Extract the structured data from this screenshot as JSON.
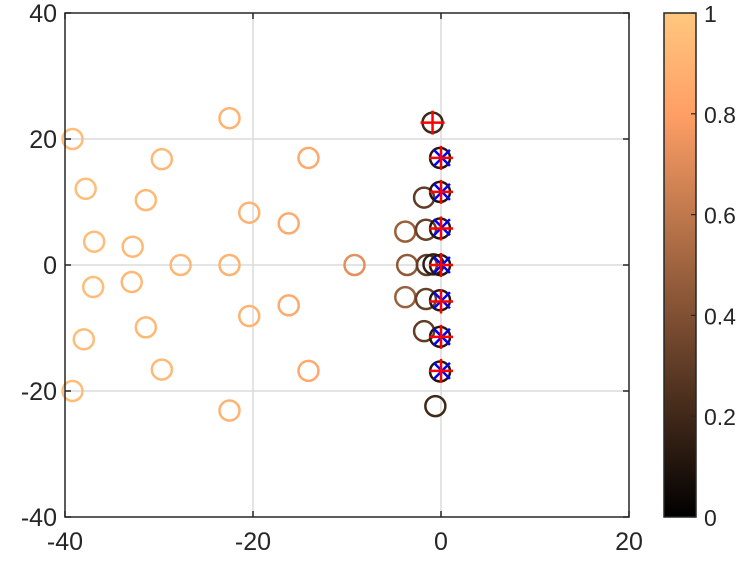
{
  "chart_data": {
    "type": "scatter",
    "title": "",
    "xlabel": "",
    "ylabel": "",
    "xlim": [
      -40,
      20
    ],
    "ylim": [
      -40,
      40
    ],
    "xticks": [
      -40,
      -20,
      0,
      20
    ],
    "yticks": [
      -40,
      -20,
      0,
      20,
      40
    ],
    "grid": true,
    "colormap": "copper",
    "colorbar": {
      "range": [
        0,
        1
      ],
      "ticks": [
        0,
        0.2,
        0.4,
        0.6,
        0.8,
        1
      ],
      "tick_labels": [
        "0",
        "0.2",
        "0.4",
        "0.6",
        "0.8",
        "1"
      ]
    },
    "series": [
      {
        "marker": "circle",
        "color_by": "value",
        "points": [
          {
            "x": -39.2,
            "y": 20.0,
            "c": 0.95
          },
          {
            "x": -37.8,
            "y": 12.1,
            "c": 0.95
          },
          {
            "x": -36.9,
            "y": 3.7,
            "c": 0.95
          },
          {
            "x": -37.0,
            "y": -3.5,
            "c": 0.95
          },
          {
            "x": -38.0,
            "y": -11.8,
            "c": 0.95
          },
          {
            "x": -39.2,
            "y": -20.0,
            "c": 0.95
          },
          {
            "x": -32.8,
            "y": 2.9,
            "c": 0.93
          },
          {
            "x": -32.9,
            "y": -2.7,
            "c": 0.93
          },
          {
            "x": -31.4,
            "y": 10.3,
            "c": 0.93
          },
          {
            "x": -31.4,
            "y": -9.9,
            "c": 0.93
          },
          {
            "x": -29.7,
            "y": 16.8,
            "c": 0.93
          },
          {
            "x": -29.7,
            "y": -16.6,
            "c": 0.93
          },
          {
            "x": -27.7,
            "y": 0.0,
            "c": 0.92
          },
          {
            "x": -22.5,
            "y": 23.3,
            "c": 0.9
          },
          {
            "x": -22.5,
            "y": -23.1,
            "c": 0.9
          },
          {
            "x": -22.5,
            "y": 0.0,
            "c": 0.9
          },
          {
            "x": -20.4,
            "y": 8.3,
            "c": 0.9
          },
          {
            "x": -20.4,
            "y": -8.1,
            "c": 0.9
          },
          {
            "x": -16.2,
            "y": 6.6,
            "c": 0.85
          },
          {
            "x": -16.2,
            "y": -6.4,
            "c": 0.85
          },
          {
            "x": -14.1,
            "y": 17.0,
            "c": 0.85
          },
          {
            "x": -14.1,
            "y": -16.8,
            "c": 0.85
          },
          {
            "x": -9.2,
            "y": 0.0,
            "c": 0.72
          },
          {
            "x": -3.8,
            "y": 5.3,
            "c": 0.48
          },
          {
            "x": -3.8,
            "y": -5.1,
            "c": 0.48
          },
          {
            "x": -3.6,
            "y": 0.0,
            "c": 0.45
          },
          {
            "x": -1.8,
            "y": 10.7,
            "c": 0.3
          },
          {
            "x": -1.8,
            "y": -10.5,
            "c": 0.3
          },
          {
            "x": -1.6,
            "y": 5.6,
            "c": 0.32
          },
          {
            "x": -1.6,
            "y": -5.4,
            "c": 0.32
          },
          {
            "x": -1.5,
            "y": 0.0,
            "c": 0.3
          },
          {
            "x": -0.9,
            "y": 22.6,
            "c": 0.2
          },
          {
            "x": -0.6,
            "y": -22.4,
            "c": 0.2
          },
          {
            "x": -0.8,
            "y": 0.1,
            "c": 0.15
          },
          {
            "x": -0.1,
            "y": 17.0,
            "c": 0.12
          },
          {
            "x": -0.1,
            "y": -16.9,
            "c": 0.12
          },
          {
            "x": -0.1,
            "y": 11.6,
            "c": 0.12
          },
          {
            "x": -0.1,
            "y": -11.4,
            "c": 0.12
          },
          {
            "x": -0.1,
            "y": 5.8,
            "c": 0.12
          },
          {
            "x": -0.1,
            "y": -5.6,
            "c": 0.12
          },
          {
            "x": -0.1,
            "y": 0.0,
            "c": 0.12
          }
        ]
      },
      {
        "marker": "x",
        "color": "#0000ff",
        "points": [
          {
            "x": 0.1,
            "y": 17.0
          },
          {
            "x": 0.1,
            "y": -16.8
          },
          {
            "x": 0.1,
            "y": 11.6
          },
          {
            "x": 0.1,
            "y": -11.4
          },
          {
            "x": 0.1,
            "y": 6.0
          },
          {
            "x": 0.1,
            "y": -5.6
          },
          {
            "x": 0.1,
            "y": 0.0
          }
        ]
      },
      {
        "marker": "plus",
        "color": "#ff0000",
        "points": [
          {
            "x": -0.9,
            "y": 22.6
          },
          {
            "x": 0.0,
            "y": 17.0
          },
          {
            "x": 0.0,
            "y": -16.8
          },
          {
            "x": 0.0,
            "y": 11.6
          },
          {
            "x": 0.0,
            "y": -11.4
          },
          {
            "x": 0.0,
            "y": 5.8
          },
          {
            "x": 0.0,
            "y": -5.8
          },
          {
            "x": 0.0,
            "y": 0.0
          }
        ]
      }
    ]
  }
}
